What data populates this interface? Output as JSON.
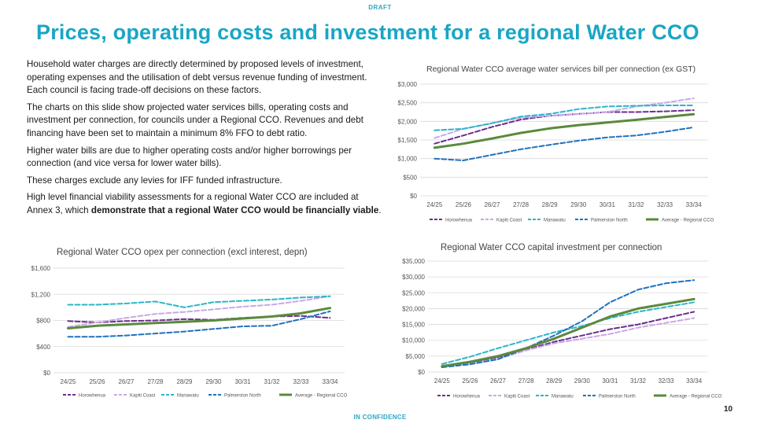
{
  "header": {
    "draft": "DRAFT",
    "title": "Prices, operating costs and investment for a regional Water CCO"
  },
  "body": {
    "paragraphs": [
      "Household water charges are directly determined by proposed levels of investment, operating expenses and the utilisation of debt versus revenue funding of investment. Each council is facing trade-off decisions on these factors.",
      "The charts on this slide show projected water services bills, operating costs and investment per connection, for councils under a Regional CCO. Revenues and debt financing have been set to maintain a minimum 8% FFO to debt ratio.",
      "Higher water bills are due to higher operating costs and/or higher borrowings per connection (and vice versa for lower water bills).",
      "These charges exclude any levies for IFF funded infrastructure."
    ],
    "last_paragraph": {
      "text_before": "High level financial viability assessments for a regional Water CCO are included at Annex 3, which ",
      "bold": "demonstrate that a regional Water CCO would be financially viable",
      "text_after": "."
    }
  },
  "footer": {
    "confidence": "IN CONFIDENCE",
    "page_number": "10"
  },
  "series_styles": [
    {
      "name": "Horowhenua",
      "color": "#6a2f8f",
      "dash": "6,3",
      "width": 2
    },
    {
      "name": "Kapiti Coast",
      "color": "#c9a8e6",
      "dash": "6,3",
      "width": 2
    },
    {
      "name": "Manawatu",
      "color": "#2bb6c8",
      "dash": "6,3",
      "width": 2
    },
    {
      "name": "Palmerston North",
      "color": "#1f72bf",
      "dash": "6,3",
      "width": 2
    },
    {
      "name": "Average - Regional CCO",
      "color": "#5a8a3c",
      "dash": "",
      "width": 3
    }
  ],
  "chart_data": [
    {
      "id": "bill",
      "type": "line",
      "title": "Regional Water CCO average water services bill per connection (ex GST)",
      "categories": [
        "24/25",
        "25/26",
        "26/27",
        "27/28",
        "28/29",
        "29/30",
        "30/31",
        "31/32",
        "32/33",
        "33/34"
      ],
      "yticks": [
        "$0",
        "$500",
        "$1,000",
        "$1,500",
        "$2,000",
        "$2,500",
        "$3,000"
      ],
      "ylim": [
        0,
        3000
      ],
      "grid": true,
      "legend": "bottom",
      "series": [
        {
          "name": "Horowhenua",
          "values": [
            1400,
            1620,
            1850,
            2050,
            2150,
            2200,
            2250,
            2250,
            2270,
            2300
          ]
        },
        {
          "name": "Kapiti Coast",
          "values": [
            1550,
            1800,
            1950,
            2100,
            2150,
            2200,
            2250,
            2400,
            2500,
            2620
          ]
        },
        {
          "name": "Manawatu",
          "values": [
            1760,
            1800,
            1950,
            2130,
            2200,
            2330,
            2400,
            2420,
            2430,
            2430
          ]
        },
        {
          "name": "Palmerston North",
          "values": [
            1000,
            950,
            1100,
            1250,
            1370,
            1480,
            1570,
            1620,
            1720,
            1840
          ]
        },
        {
          "name": "Average - Regional CCO",
          "values": [
            1290,
            1400,
            1540,
            1690,
            1810,
            1900,
            1970,
            2040,
            2120,
            2190
          ]
        }
      ]
    },
    {
      "id": "opex",
      "type": "line",
      "title": "Regional Water CCO opex per connection (excl interest, depn)",
      "categories": [
        "24/25",
        "25/26",
        "26/27",
        "27/28",
        "28/29",
        "29/30",
        "30/31",
        "31/32",
        "32/33",
        "33/34"
      ],
      "yticks": [
        "$0",
        "$400",
        "$800",
        "$1,200",
        "$1,600"
      ],
      "ylim": [
        0,
        1600
      ],
      "grid": true,
      "legend": "bottom",
      "series": [
        {
          "name": "Horowhenua",
          "values": [
            790,
            770,
            790,
            800,
            820,
            810,
            840,
            860,
            870,
            840
          ]
        },
        {
          "name": "Kapiti Coast",
          "values": [
            700,
            770,
            840,
            900,
            930,
            970,
            1010,
            1040,
            1100,
            1170
          ]
        },
        {
          "name": "Manawatu",
          "values": [
            1040,
            1040,
            1060,
            1090,
            1000,
            1080,
            1100,
            1120,
            1150,
            1170
          ]
        },
        {
          "name": "Palmerston North",
          "values": [
            550,
            550,
            570,
            600,
            630,
            670,
            710,
            720,
            820,
            940
          ]
        },
        {
          "name": "Average - Regional CCO",
          "values": [
            680,
            720,
            740,
            760,
            780,
            800,
            830,
            860,
            910,
            990
          ]
        }
      ]
    },
    {
      "id": "capex",
      "type": "line",
      "title": "Regional Water CCO capital investment per connection",
      "categories": [
        "24/25",
        "25/26",
        "26/27",
        "27/28",
        "28/29",
        "29/30",
        "30/31",
        "31/32",
        "32/33",
        "33/34"
      ],
      "yticks": [
        "$0",
        "$5,000",
        "$10,000",
        "$15,000",
        "$20,000",
        "$25,000",
        "$30,000",
        "$35,000"
      ],
      "ylim": [
        0,
        35000
      ],
      "grid": true,
      "legend": "bottom",
      "series": [
        {
          "name": "Horowhenua",
          "values": [
            1500,
            2700,
            4500,
            7000,
            9500,
            11500,
            13500,
            15000,
            17000,
            19000
          ]
        },
        {
          "name": "Kapiti Coast",
          "values": [
            1500,
            2500,
            4200,
            6800,
            9000,
            10500,
            12000,
            14000,
            15500,
            17000
          ]
        },
        {
          "name": "Manawatu",
          "values": [
            2500,
            4800,
            7500,
            10000,
            12500,
            14500,
            17000,
            19000,
            20500,
            22000
          ]
        },
        {
          "name": "Palmerston North",
          "values": [
            1500,
            2400,
            4000,
            7500,
            11500,
            16000,
            22000,
            26000,
            28000,
            29000
          ]
        },
        {
          "name": "Average - Regional CCO",
          "values": [
            1800,
            3200,
            5000,
            7500,
            10500,
            14000,
            17500,
            20000,
            21500,
            23000
          ]
        }
      ]
    }
  ]
}
